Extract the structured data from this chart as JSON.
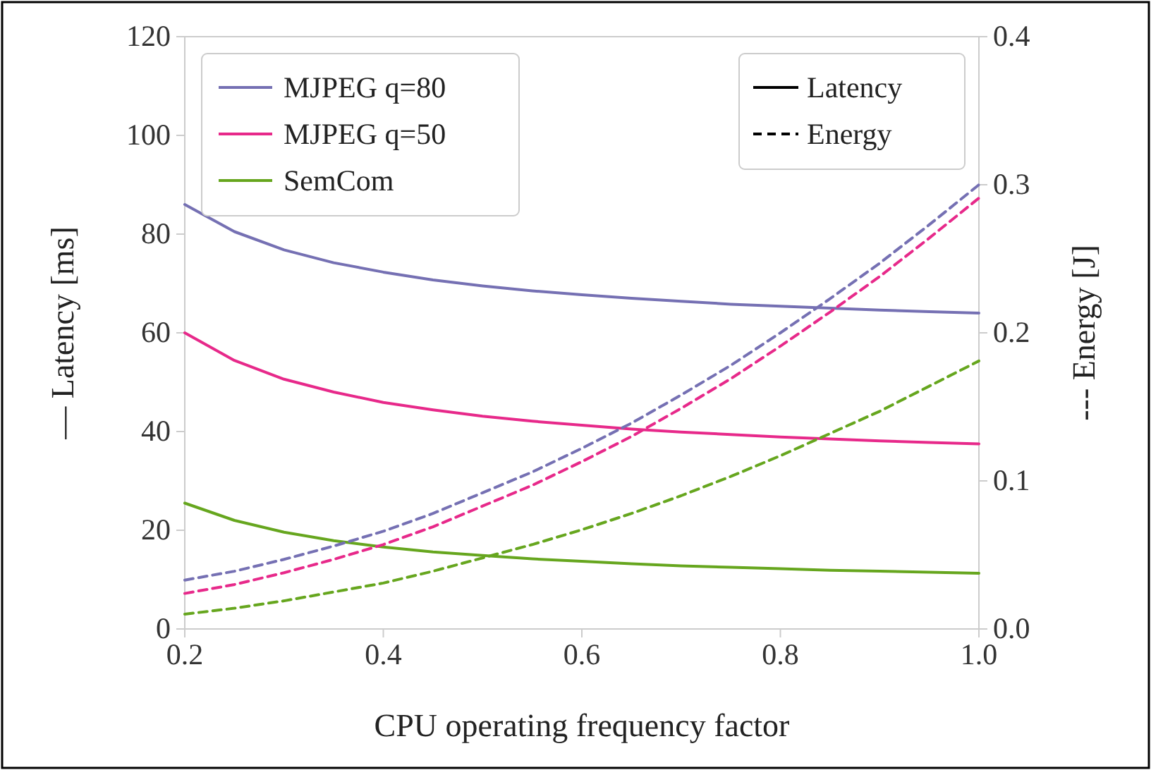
{
  "chart_data": {
    "type": "line",
    "xlabel": "CPU operating frequency factor",
    "ylabel": "— Latency [ms]",
    "y2label": "--- Energy [J]",
    "x": [
      0.2,
      0.25,
      0.3,
      0.35,
      0.4,
      0.45,
      0.5,
      0.55,
      0.6,
      0.65,
      0.7,
      0.75,
      0.8,
      0.85,
      0.9,
      0.95,
      1.0
    ],
    "xlim": [
      0.2,
      1.0
    ],
    "xticks": [
      {
        "value": 0.2,
        "label": "0.2"
      },
      {
        "value": 0.4,
        "label": "0.4"
      },
      {
        "value": 0.6,
        "label": "0.6"
      },
      {
        "value": 0.8,
        "label": "0.8"
      },
      {
        "value": 1.0,
        "label": "1.0"
      }
    ],
    "ylim": [
      0,
      120
    ],
    "yticks": [
      0,
      20,
      40,
      60,
      80,
      100,
      120
    ],
    "y2lim": [
      0,
      0.4
    ],
    "y2ticks": [
      {
        "value": 0,
        "label": "0.0"
      },
      {
        "value": 0.1,
        "label": "0.1"
      },
      {
        "value": 0.2,
        "label": "0.2"
      },
      {
        "value": 0.3,
        "label": "0.3"
      },
      {
        "value": 0.4,
        "label": "0.4"
      }
    ],
    "legend": "top left",
    "grid": false,
    "marker": "none",
    "annotations": [
      "Latency",
      "Energy"
    ],
    "series": [
      {
        "name": "MJPEG q=80",
        "color": "#7570b3",
        "line_style": "solid",
        "values": [
          86.0,
          80.5,
          76.8,
          74.2,
          72.3,
          70.7,
          69.5,
          68.5,
          67.7,
          67.0,
          66.4,
          65.8,
          65.4,
          65.0,
          64.6,
          64.3,
          64.0
        ]
      },
      {
        "name": "MJPEG q=50",
        "color": "#e7298a",
        "line_style": "solid",
        "values": [
          60.0,
          54.4,
          50.6,
          48.0,
          45.9,
          44.4,
          43.1,
          42.1,
          41.3,
          40.5,
          39.9,
          39.4,
          38.9,
          38.5,
          38.1,
          37.8,
          37.5
        ]
      },
      {
        "name": "SemCom",
        "color": "#66a61e",
        "line_style": "solid",
        "values": [
          25.5,
          22.0,
          19.6,
          17.9,
          16.6,
          15.6,
          14.9,
          14.2,
          13.7,
          13.2,
          12.8,
          12.5,
          12.2,
          11.9,
          11.7,
          11.5,
          11.3
        ]
      },
      {
        "color": "#7570b3",
        "line_style": "dashed",
        "axis": "y2",
        "values": [
          0.033,
          0.039,
          0.047,
          0.056,
          0.066,
          0.078,
          0.092,
          0.106,
          0.122,
          0.139,
          0.158,
          0.178,
          0.2,
          0.223,
          0.247,
          0.273,
          0.3
        ]
      },
      {
        "color": "#e7298a",
        "line_style": "dashed",
        "axis": "y2",
        "values": [
          0.024,
          0.03,
          0.038,
          0.047,
          0.057,
          0.069,
          0.083,
          0.097,
          0.113,
          0.13,
          0.149,
          0.169,
          0.191,
          0.214,
          0.238,
          0.264,
          0.291
        ]
      },
      {
        "color": "#66a61e",
        "line_style": "dashed",
        "axis": "y2",
        "values": [
          0.01,
          0.014,
          0.019,
          0.025,
          0.031,
          0.039,
          0.048,
          0.057,
          0.067,
          0.078,
          0.09,
          0.103,
          0.117,
          0.132,
          0.147,
          0.164,
          0.181
        ]
      }
    ]
  }
}
